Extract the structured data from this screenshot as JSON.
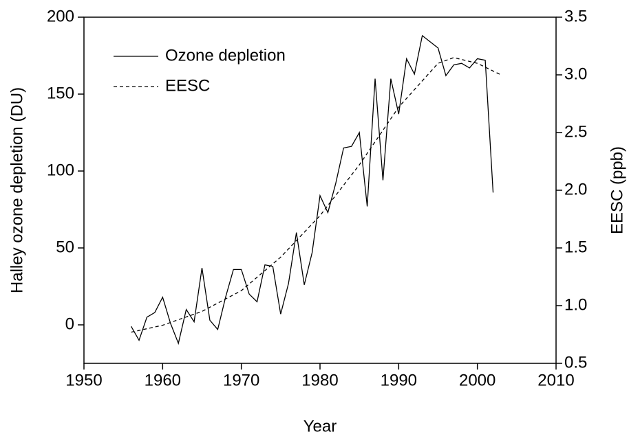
{
  "chart_data": {
    "type": "line",
    "x_label": "Year",
    "y_label": "Halley ozone depletion (DU)",
    "y2_label": "EESC (ppb)",
    "xlim": [
      1950,
      2010
    ],
    "xticks": [
      1950,
      1960,
      1970,
      1980,
      1990,
      2000,
      2010
    ],
    "ylim": [
      -25,
      200
    ],
    "yticks": [
      0,
      50,
      100,
      150,
      200
    ],
    "y2lim": [
      0.5,
      3.5
    ],
    "y2ticks": [
      0.5,
      {
        "value": 1,
        "label": "1.0"
      },
      1.5,
      {
        "value": 2,
        "label": "2.0"
      },
      2.5,
      {
        "value": 3,
        "label": "3.0"
      },
      3.5
    ],
    "legend": "upper-left",
    "series": [
      {
        "name": "Ozone depletion",
        "color": "#000000",
        "dash": "solid",
        "x": [
          1956,
          1957,
          1958,
          1959,
          1960,
          1961,
          1962,
          1963,
          1964,
          1965,
          1966,
          1967,
          1968,
          1969,
          1970,
          1971,
          1972,
          1973,
          1974,
          1975,
          1976,
          1977,
          1978,
          1979,
          1980,
          1981,
          1982,
          1983,
          1984,
          1985,
          1986,
          1987,
          1988,
          1989,
          1990,
          1991,
          1992,
          1993,
          1994,
          1995,
          1996,
          1997,
          1998,
          1999,
          2000,
          2001,
          2002
        ],
        "values": [
          -1,
          -10,
          5,
          8,
          18,
          1,
          -12,
          10,
          2,
          37,
          3,
          -3,
          18,
          36,
          36,
          20,
          15,
          39,
          38,
          7,
          27,
          60,
          26,
          47,
          84,
          73,
          92,
          115,
          116,
          125,
          77,
          160,
          94,
          160,
          137,
          173,
          163,
          188,
          184,
          180,
          162,
          169,
          170,
          167,
          173,
          172,
          86
        ]
      },
      {
        "name": "EESC",
        "color": "#000000",
        "dash": "dashed",
        "axis": "y2",
        "x": [
          1956,
          1960,
          1965,
          1970,
          1975,
          1980,
          1985,
          1990,
          1995,
          1997,
          2000,
          2003
        ],
        "values": [
          0.77,
          0.83,
          0.95,
          1.13,
          1.42,
          1.78,
          2.22,
          2.72,
          3.1,
          3.15,
          3.1,
          3.0
        ]
      }
    ]
  }
}
